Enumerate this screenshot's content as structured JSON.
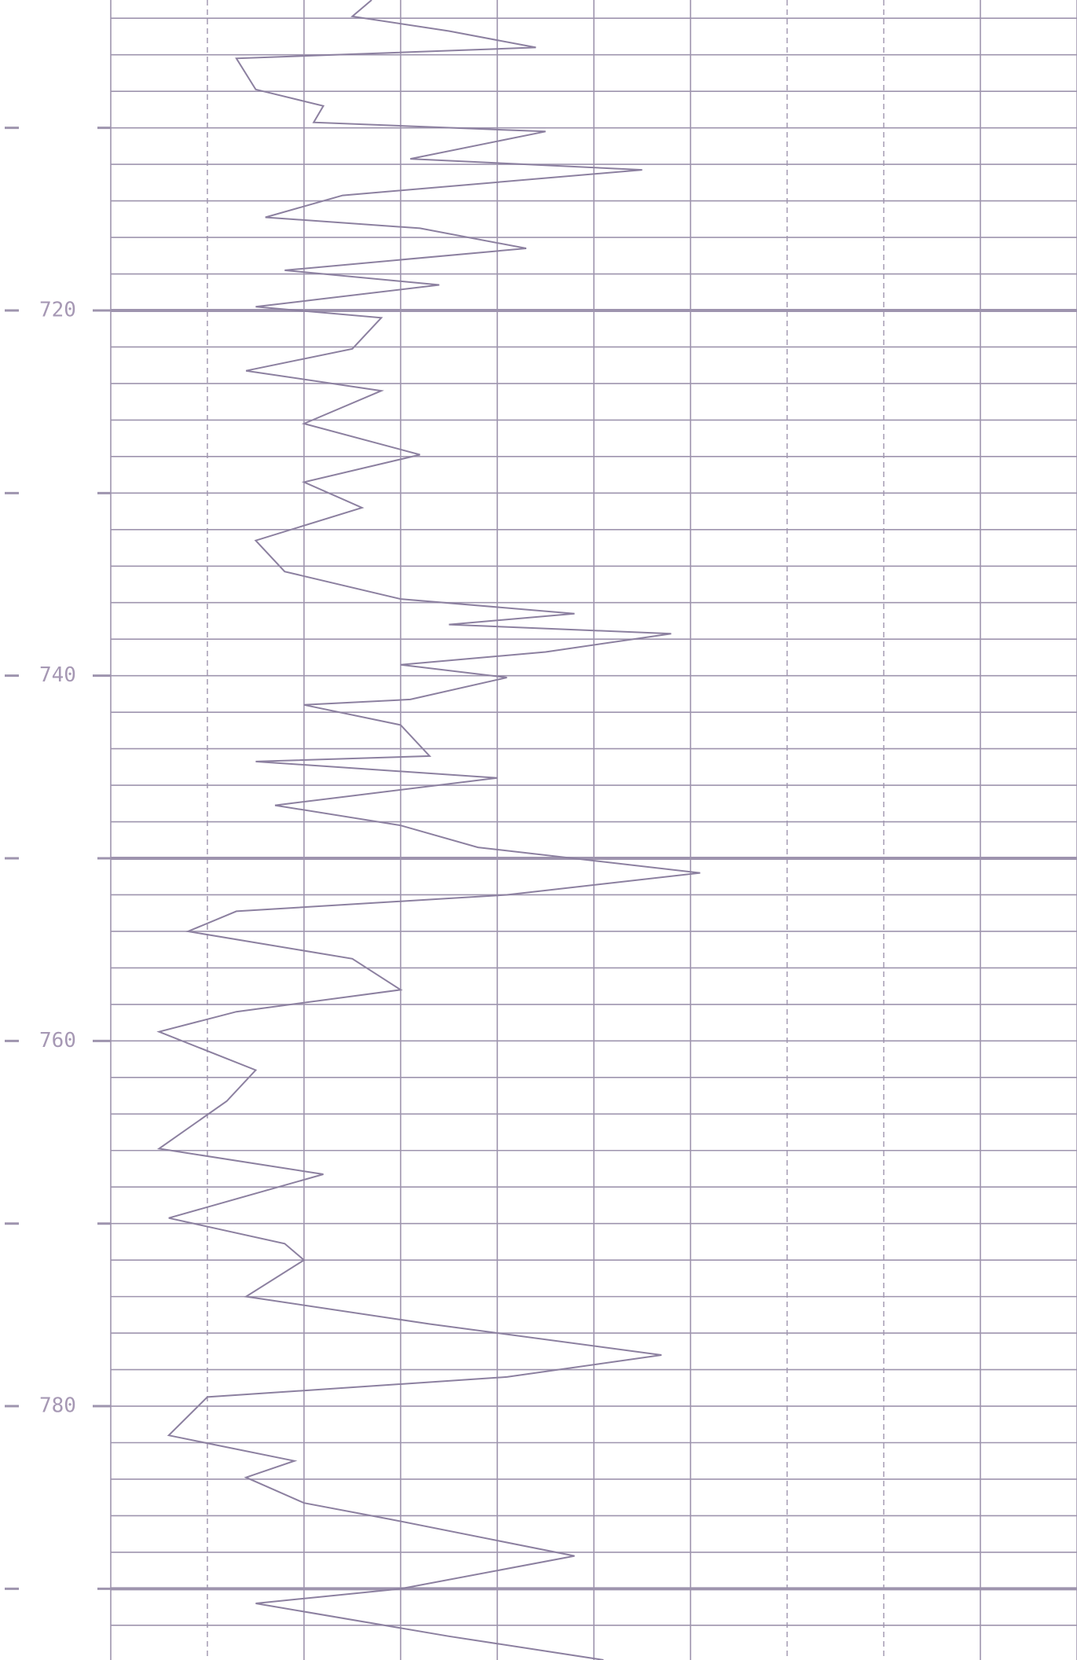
{
  "chart_data": {
    "type": "line",
    "orientation": "vertical",
    "color": "#8c80a0",
    "x": [
      703,
      703.9,
      704.7,
      705.6,
      706.2,
      707.9,
      708.8,
      709.7,
      710.2,
      711.7,
      712.3,
      713.7,
      714.9,
      715.5,
      716.6,
      717.8,
      718.6,
      719.8,
      720.4,
      722.1,
      723.3,
      724.4,
      726.2,
      727.9,
      729.4,
      730.8,
      732.6,
      734.3,
      735.8,
      736.6,
      737.2,
      737.7,
      738.7,
      739.4,
      740.1,
      741.3,
      741.6,
      742.7,
      744.4,
      744.7,
      745.6,
      747.1,
      748.2,
      749.4,
      750.8,
      752,
      752.9,
      754,
      755.5,
      757.2,
      758.4,
      759.5,
      761.6,
      763.3,
      765.9,
      767.3,
      769.7,
      771.1,
      772,
      774,
      775.5,
      777.2,
      778.4,
      779.5,
      781.6,
      783,
      783.9,
      785.3,
      786.2,
      788.2,
      790,
      790.8,
      792.6,
      793.9
    ],
    "values": [
      2.7,
      2.5,
      3.5,
      4.4,
      1.3,
      1.5,
      2.2,
      2.1,
      4.5,
      3.1,
      5.5,
      2.4,
      1.6,
      3.2,
      4.3,
      1.8,
      3.4,
      1.5,
      2.8,
      2.5,
      1.4,
      2.8,
      2.0,
      3.2,
      2.0,
      2.6,
      1.5,
      1.8,
      3.0,
      4.8,
      3.5,
      5.8,
      4.5,
      3.0,
      4.1,
      3.1,
      2.0,
      3.0,
      3.3,
      1.5,
      4.0,
      1.7,
      3.0,
      3.8,
      6.1,
      4.1,
      1.3,
      0.8,
      2.5,
      3.0,
      1.3,
      0.5,
      1.5,
      1.2,
      0.5,
      2.2,
      0.6,
      1.8,
      2.0,
      1.4,
      3.3,
      5.7,
      4.1,
      1.0,
      0.6,
      1.9,
      1.4,
      2.0,
      2.9,
      4.8,
      3.0,
      1.5,
      3.5,
      5.1
    ],
    "ylim": [
      703,
      793.9
    ],
    "y_inverted": true,
    "yticks": [
      720,
      740,
      760,
      780
    ],
    "minor_yticks": [
      710,
      730,
      750,
      770,
      790
    ],
    "ygrid": [
      704,
      706,
      708,
      710,
      712,
      714,
      716,
      718,
      720,
      722,
      724,
      726,
      728,
      730,
      732,
      734,
      736,
      738,
      740,
      742,
      744,
      746,
      748,
      750,
      752,
      754,
      756,
      758,
      760,
      762,
      764,
      766,
      768,
      770,
      772,
      774,
      776,
      778,
      780,
      782,
      784,
      786,
      788,
      790,
      792
    ],
    "ygrid_major": [
      720,
      750,
      790
    ],
    "xlim": [
      0,
      10
    ],
    "xticks": [
      0,
      1,
      2,
      3,
      4,
      5,
      6,
      7,
      8,
      9,
      10
    ],
    "dashed_xticks": [
      1,
      7,
      8
    ],
    "grid_color": "#9e94ae"
  }
}
